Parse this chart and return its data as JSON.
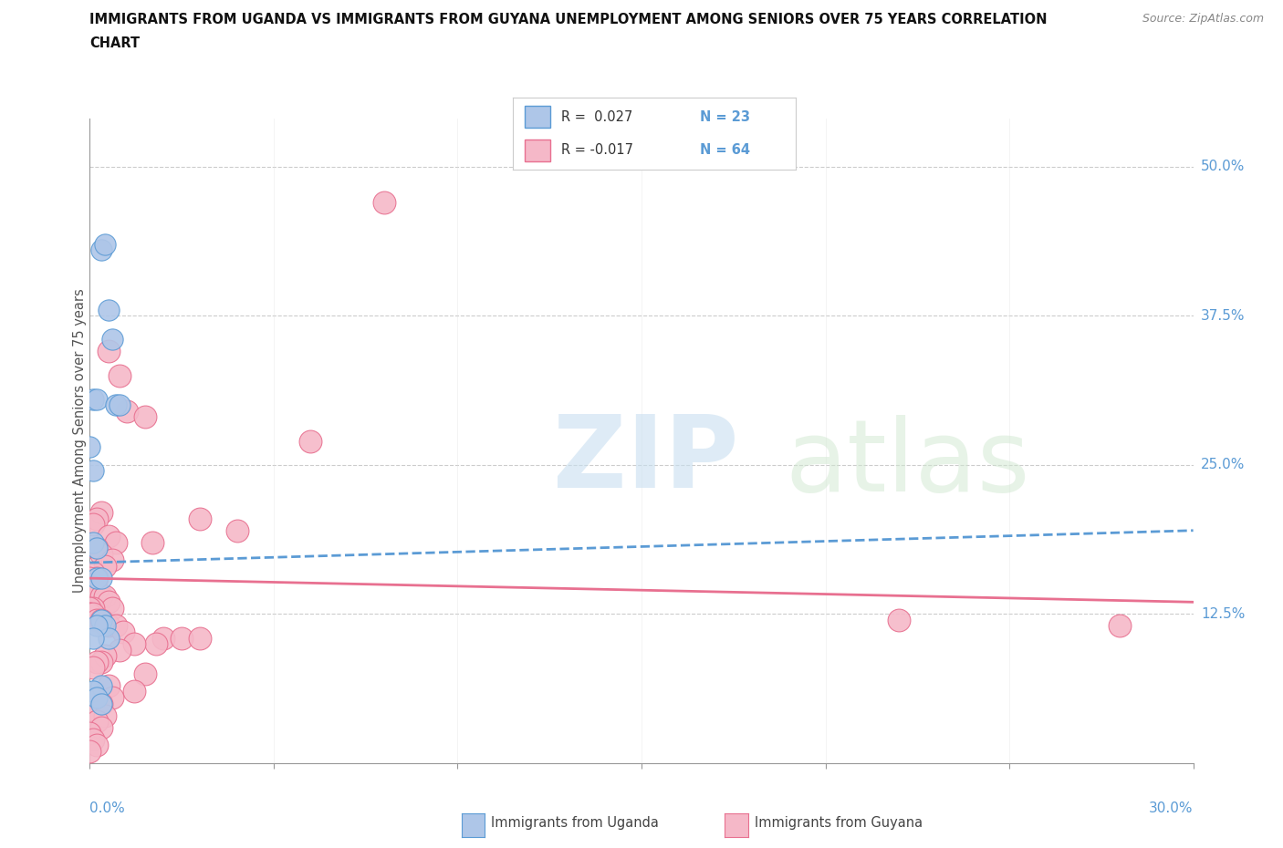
{
  "title_line1": "IMMIGRANTS FROM UGANDA VS IMMIGRANTS FROM GUYANA UNEMPLOYMENT AMONG SENIORS OVER 75 YEARS CORRELATION",
  "title_line2": "CHART",
  "source": "Source: ZipAtlas.com",
  "ylabel": "Unemployment Among Seniors over 75 years",
  "xlim": [
    0.0,
    0.3
  ],
  "ylim": [
    0.0,
    0.54
  ],
  "uganda_fill": "#aec6e8",
  "uganda_edge": "#5b9bd5",
  "guyana_fill": "#f5b8c8",
  "guyana_edge": "#e87090",
  "trend_uganda_color": "#5b9bd5",
  "trend_guyana_color": "#e87090",
  "watermark_zip_color": "#c8dff0",
  "watermark_atlas_color": "#d0e8d0",
  "right_label_color": "#5b9bd5",
  "xlabel_color": "#5b9bd5",
  "ytick_positions": [
    0.125,
    0.25,
    0.375,
    0.5
  ],
  "ytick_labels": [
    "12.5%",
    "25.0%",
    "37.5%",
    "50.0%"
  ],
  "xtick_positions": [
    0.0,
    0.05,
    0.1,
    0.15,
    0.2,
    0.25,
    0.3
  ],
  "legend_r1": "R =  0.027",
  "legend_n1": "N = 23",
  "legend_r2": "R = -0.017",
  "legend_n2": "N = 64",
  "uganda_x": [
    0.0,
    0.001,
    0.002,
    0.003,
    0.004,
    0.005,
    0.006,
    0.007,
    0.008,
    0.001,
    0.002,
    0.003,
    0.001,
    0.002,
    0.003,
    0.004,
    0.005,
    0.002,
    0.001,
    0.003,
    0.001,
    0.002,
    0.003
  ],
  "uganda_y": [
    0.265,
    0.305,
    0.305,
    0.43,
    0.435,
    0.38,
    0.355,
    0.3,
    0.3,
    0.185,
    0.155,
    0.155,
    0.245,
    0.18,
    0.12,
    0.115,
    0.105,
    0.115,
    0.105,
    0.065,
    0.06,
    0.055,
    0.05
  ],
  "guyana_x": [
    0.03,
    0.04,
    0.005,
    0.008,
    0.01,
    0.015,
    0.003,
    0.002,
    0.001,
    0.005,
    0.007,
    0.002,
    0.003,
    0.006,
    0.004,
    0.001,
    0.002,
    0.0,
    0.0,
    0.0,
    0.001,
    0.002,
    0.003,
    0.004,
    0.005,
    0.006,
    0.001,
    0.0,
    0.0,
    0.0,
    0.001,
    0.002,
    0.003,
    0.005,
    0.007,
    0.009,
    0.02,
    0.025,
    0.03,
    0.018,
    0.012,
    0.008,
    0.004,
    0.003,
    0.002,
    0.001,
    0.015,
    0.22,
    0.28,
    0.005,
    0.012,
    0.006,
    0.003,
    0.001,
    0.004,
    0.002,
    0.003,
    0.0,
    0.001,
    0.002,
    0.0,
    0.08,
    0.06,
    0.017
  ],
  "guyana_y": [
    0.205,
    0.195,
    0.345,
    0.325,
    0.295,
    0.29,
    0.21,
    0.205,
    0.2,
    0.19,
    0.185,
    0.18,
    0.175,
    0.17,
    0.165,
    0.16,
    0.155,
    0.155,
    0.15,
    0.15,
    0.145,
    0.145,
    0.14,
    0.14,
    0.135,
    0.13,
    0.13,
    0.13,
    0.125,
    0.125,
    0.125,
    0.12,
    0.12,
    0.115,
    0.115,
    0.11,
    0.105,
    0.105,
    0.105,
    0.1,
    0.1,
    0.095,
    0.09,
    0.085,
    0.085,
    0.08,
    0.075,
    0.12,
    0.115,
    0.065,
    0.06,
    0.055,
    0.05,
    0.045,
    0.04,
    0.035,
    0.03,
    0.025,
    0.02,
    0.015,
    0.01,
    0.47,
    0.27,
    0.185
  ],
  "trend_uganda_x0": 0.0,
  "trend_uganda_x1": 0.3,
  "trend_uganda_y0": 0.168,
  "trend_uganda_y1": 0.195,
  "trend_guyana_x0": 0.0,
  "trend_guyana_x1": 0.3,
  "trend_guyana_y0": 0.155,
  "trend_guyana_y1": 0.135
}
